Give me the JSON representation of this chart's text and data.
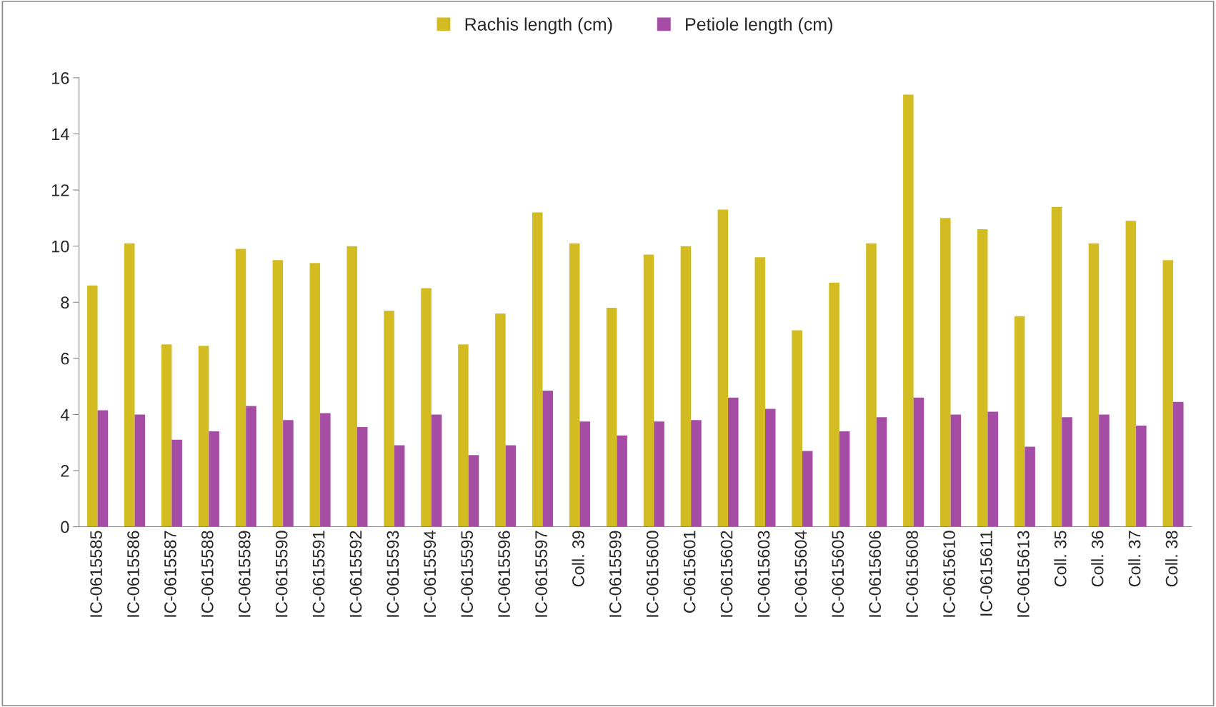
{
  "chart_data": {
    "type": "bar",
    "categories": [
      "IC-0615585",
      "IC-0615586",
      "IC-0615587",
      "IC-0615588",
      "IC-0615589",
      "IC-0615590",
      "IC-0615591",
      "IC-0615592",
      "IC-0615593",
      "IC-0615594",
      "IC-0615595",
      "IC-0615596",
      "IC-0615597",
      "Coll. 39",
      "IC-0615599",
      "IC-0615600",
      "C-0615601",
      "IC-0615602",
      "IC-0615603",
      "IC-0615604",
      "IC-0615605",
      "IC-0615606",
      "IC-0615608",
      "IC-0615610",
      "IC-0615611",
      "IC-0615613",
      "Coll. 35",
      "Coll. 36",
      "Coll. 37",
      "Coll. 38"
    ],
    "series": [
      {
        "name": "Rachis length (cm)",
        "color": "#d2bc22",
        "values": [
          8.6,
          10.1,
          6.5,
          6.45,
          9.9,
          9.5,
          9.4,
          10.0,
          7.7,
          8.5,
          6.5,
          7.6,
          11.2,
          10.1,
          7.8,
          9.7,
          10.0,
          11.3,
          9.6,
          7.0,
          8.7,
          10.1,
          15.4,
          11.0,
          10.6,
          7.5,
          11.4,
          10.1,
          10.9,
          9.5
        ]
      },
      {
        "name": "Petiole length (cm)",
        "color": "#a54ca5",
        "values": [
          4.15,
          4.0,
          3.1,
          3.4,
          4.3,
          3.8,
          4.05,
          3.55,
          2.9,
          4.0,
          2.55,
          2.9,
          4.85,
          3.75,
          3.25,
          3.75,
          3.8,
          4.6,
          4.2,
          2.7,
          3.4,
          3.9,
          4.6,
          4.0,
          4.1,
          2.85,
          3.9,
          4.0,
          3.6,
          4.45
        ]
      }
    ],
    "ylim": [
      0,
      16
    ],
    "yticks": [
      0,
      2,
      4,
      6,
      8,
      10,
      12,
      14,
      16
    ],
    "legend": "top",
    "grid": false
  }
}
